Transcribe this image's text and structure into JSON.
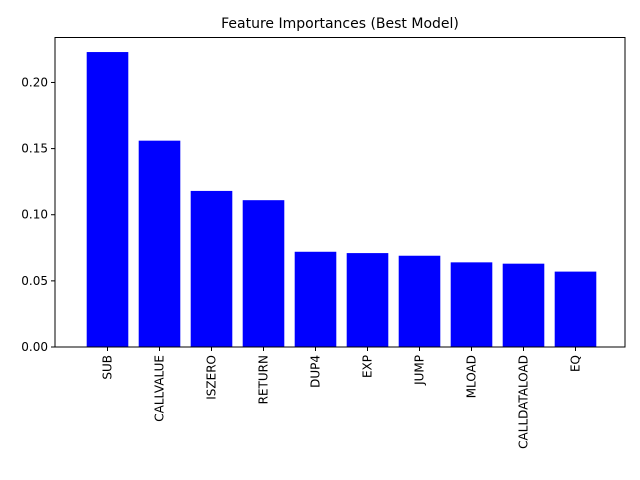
{
  "chart_data": {
    "type": "bar",
    "title": "Feature Importances (Best Model)",
    "xlabel": "",
    "ylabel": "",
    "categories": [
      "SUB",
      "CALLVALUE",
      "ISZERO",
      "RETURN",
      "DUP4",
      "EXP",
      "JUMP",
      "MLOAD",
      "CALLDATALOAD",
      "EQ"
    ],
    "values": [
      0.223,
      0.156,
      0.118,
      0.111,
      0.072,
      0.071,
      0.069,
      0.064,
      0.063,
      0.057
    ],
    "ylim": [
      0,
      0.234
    ],
    "yticks": [
      0.0,
      0.05,
      0.1,
      0.15,
      0.2
    ],
    "ytick_labels": [
      "0.00",
      "0.05",
      "0.10",
      "0.15",
      "0.20"
    ],
    "bar_color": "#0000ff",
    "grid": false,
    "legend": "none"
  }
}
